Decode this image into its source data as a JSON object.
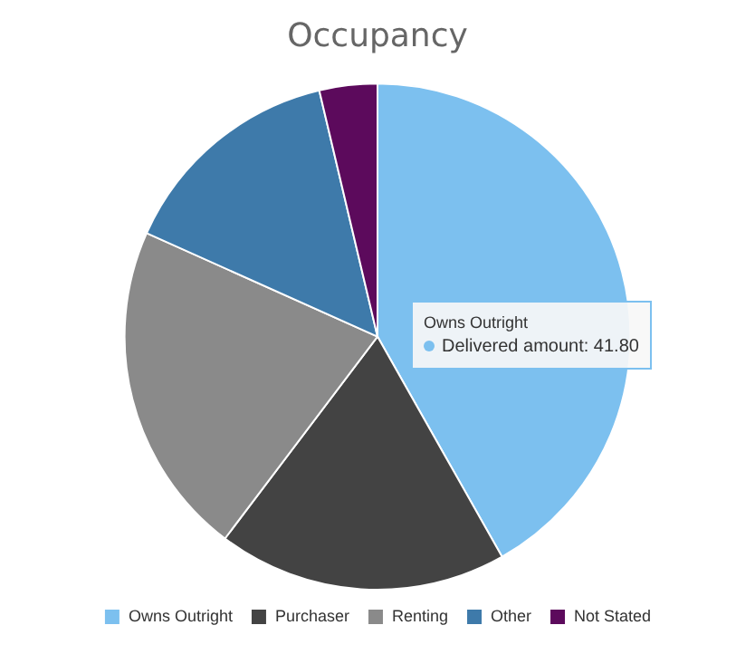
{
  "chart_data": {
    "type": "pie",
    "title": "Occupancy",
    "categories": [
      "Owns Outright",
      "Purchaser",
      "Renting",
      "Other",
      "Not Stated"
    ],
    "values": [
      41.8,
      18.5,
      21.4,
      14.6,
      3.7
    ],
    "colors": [
      "#7cc0ef",
      "#434343",
      "#8a8a8a",
      "#3e7aaa",
      "#5c0a5c"
    ],
    "legend": "bottom",
    "annotations": [
      "Owns Outright",
      "Delivered amount: 41.80"
    ]
  }
}
